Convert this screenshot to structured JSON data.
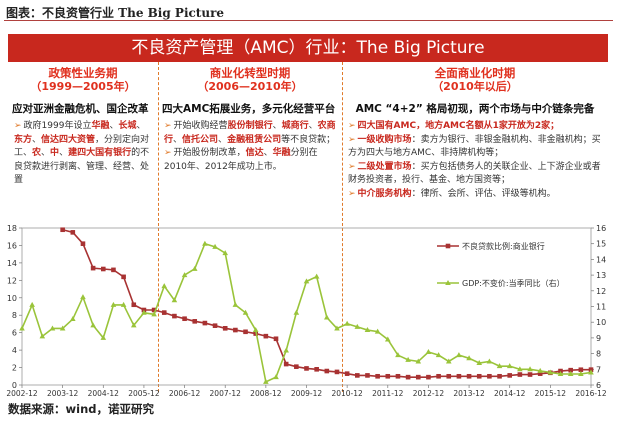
{
  "caption": "图表：不良资管行业 The Big Picture",
  "banner": "不良资产管理（AMC）行业：The Big Picture",
  "periods": [
    {
      "title": "政策性业务期",
      "sub": "（1999—2005年）",
      "head": "应对亚洲金融危机、国企改革",
      "bullets": [
        [
          "政府1999年设立",
          "华融",
          "、",
          "长城",
          "、",
          "东方",
          "、",
          "信达四大资管",
          "，分别定向对工、",
          "农",
          "、",
          "中",
          "、",
          "建四大国有银行",
          "的不良贷款进行剥离、管理、经营、处置"
        ]
      ]
    },
    {
      "title": "商业化转型时期",
      "sub": "（2006—2010年）",
      "head": "四大AMC拓展业务，多元化经营平台",
      "bullets": [
        [
          "开始收购经营",
          "股份制银行",
          "、",
          "城商行",
          "、",
          "农商行",
          "、",
          "信托公司",
          "、",
          "金融租赁公司",
          "等不良贷款；"
        ],
        [
          "开始股份制改革，",
          "信达",
          "、",
          "华融",
          "分别在2010年、2012年成功上市。"
        ]
      ]
    },
    {
      "title": "全面商业化时期",
      "sub": "（2010年以后）",
      "head": "AMC “4+2” 格局初现，两个市场与中介链条完备",
      "bullets": [
        [
          "四大国有AMC，地方AMC名额从1家开放为2家；"
        ],
        [
          "一级收购市场",
          "：卖方为银行、非银金融机构、非金融机构；买方为四大与地方AMC、非持牌机构等；"
        ],
        [
          "二级处置市场",
          "：买方包括债务人的关联企业、上下游企业或者财务投资者，投行、基金、地方国资等；"
        ],
        [
          "中介服务机构",
          "：律所、会所、评估、评级等机构。"
        ]
      ]
    }
  ],
  "chart_data": {
    "type": "line",
    "x_ticks": [
      "2002-12",
      "2003-12",
      "2004-12",
      "2005-12",
      "2006-12",
      "2007-12",
      "2008-12",
      "2009-12",
      "2010-12",
      "2011-12",
      "2012-12",
      "2013-12",
      "2014-12",
      "2015-12",
      "2016-12"
    ],
    "ylim_left": [
      0,
      18
    ],
    "ylim_right": [
      6,
      16
    ],
    "y_ticks_left": [
      "0",
      "2",
      "4",
      "6",
      "8",
      "10",
      "12",
      "14",
      "16",
      "18"
    ],
    "y_ticks_right": [
      "6",
      "7",
      "8",
      "9",
      "10",
      "11",
      "12",
      "13",
      "14",
      "15",
      "16"
    ],
    "series": [
      {
        "name": "不良贷款比例:商业银行",
        "axis": "left",
        "color": "#a83232",
        "marker": "square",
        "x": [
          2003.75,
          2004.0,
          2004.25,
          2004.5,
          2004.75,
          2005.0,
          2005.25,
          2005.5,
          2005.75,
          2006.0,
          2006.25,
          2006.5,
          2006.75,
          2007.0,
          2007.25,
          2007.5,
          2007.75,
          2008.0,
          2008.25,
          2008.5,
          2008.75,
          2009.0,
          2009.25,
          2009.5,
          2009.75,
          2010.0,
          2010.25,
          2010.5,
          2010.75,
          2011.0,
          2011.25,
          2011.5,
          2011.75,
          2012.0,
          2012.25,
          2012.5,
          2012.75,
          2013.0,
          2013.25,
          2013.5,
          2013.75,
          2014.0,
          2014.25,
          2014.5,
          2014.75,
          2015.0,
          2015.25,
          2015.5,
          2015.75,
          2016.0,
          2016.25,
          2016.5,
          2016.75
        ],
        "values": [
          17.8,
          17.5,
          16.2,
          13.4,
          13.3,
          13.2,
          12.4,
          9.2,
          8.6,
          8.6,
          8.3,
          7.9,
          7.6,
          7.3,
          7.1,
          6.8,
          6.5,
          6.3,
          6.1,
          5.9,
          5.6,
          5.3,
          2.4,
          2.1,
          1.9,
          1.8,
          1.6,
          1.5,
          1.3,
          1.1,
          1.1,
          1.0,
          1.0,
          1.0,
          0.9,
          0.9,
          0.9,
          1.0,
          1.0,
          1.0,
          1.0,
          1.0,
          1.0,
          1.0,
          1.1,
          1.2,
          1.2,
          1.3,
          1.4,
          1.6,
          1.7,
          1.75,
          1.76
        ]
      },
      {
        "name": "GDP:不变价:当季同比（右）",
        "axis": "right",
        "color": "#9ac43a",
        "marker": "triangle",
        "x": [
          2002.75,
          2003.0,
          2003.25,
          2003.5,
          2003.75,
          2004.0,
          2004.25,
          2004.5,
          2004.75,
          2005.0,
          2005.25,
          2005.5,
          2005.75,
          2006.0,
          2006.25,
          2006.5,
          2006.75,
          2007.0,
          2007.25,
          2007.5,
          2007.75,
          2008.0,
          2008.25,
          2008.5,
          2008.75,
          2009.0,
          2009.25,
          2009.5,
          2009.75,
          2010.0,
          2010.25,
          2010.5,
          2010.75,
          2011.0,
          2011.25,
          2011.5,
          2011.75,
          2012.0,
          2012.25,
          2012.5,
          2012.75,
          2013.0,
          2013.25,
          2013.5,
          2013.75,
          2014.0,
          2014.25,
          2014.5,
          2014.75,
          2015.0,
          2015.25,
          2015.5,
          2015.75,
          2016.0,
          2016.25,
          2016.5,
          2016.75
        ],
        "values": [
          9.6,
          11.1,
          9.1,
          9.6,
          9.6,
          10.2,
          11.6,
          9.8,
          9.0,
          11.1,
          11.1,
          9.8,
          10.6,
          10.5,
          12.3,
          11.4,
          13.0,
          13.4,
          15.0,
          14.8,
          14.4,
          11.1,
          10.6,
          9.5,
          6.2,
          6.5,
          8.2,
          10.6,
          12.6,
          12.9,
          10.3,
          9.6,
          9.9,
          9.7,
          9.5,
          9.4,
          8.9,
          7.9,
          7.6,
          7.5,
          8.1,
          7.9,
          7.5,
          7.9,
          7.7,
          7.4,
          7.5,
          7.2,
          7.2,
          7.0,
          7.0,
          6.9,
          6.8,
          6.7,
          6.7,
          6.7,
          6.8
        ]
      }
    ],
    "legend_position": "right"
  },
  "source": "数据来源：wind，诺亚研究"
}
